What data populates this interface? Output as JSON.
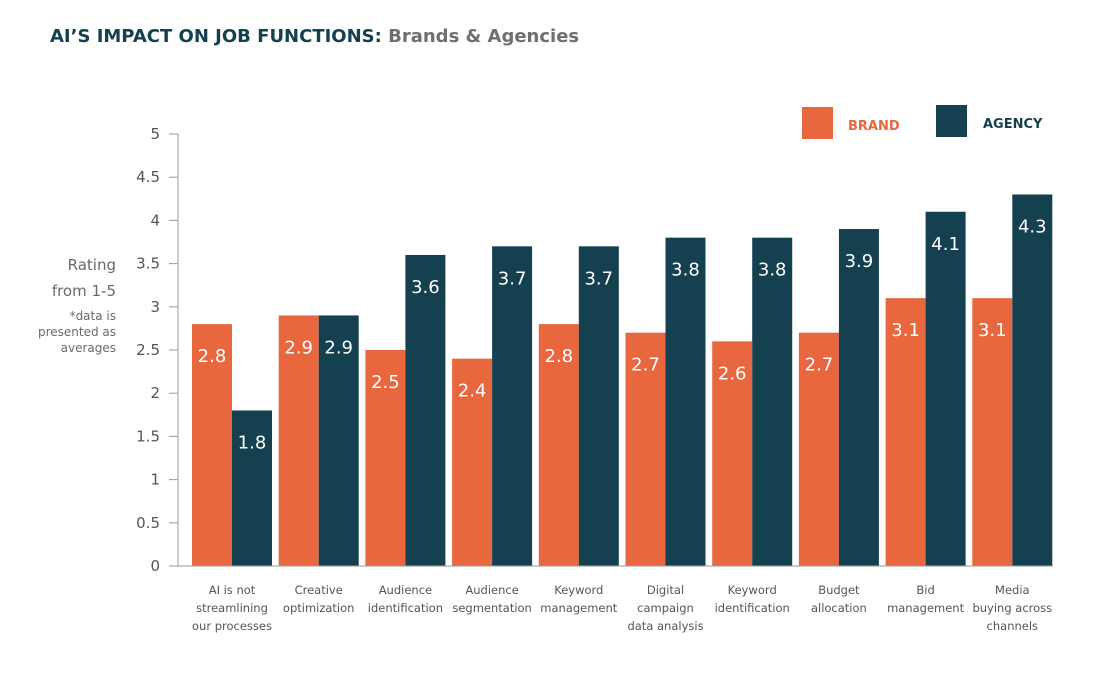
{
  "title": {
    "main": "AI’S IMPACT ON JOB FUNCTIONS:",
    "sub": "Brands & Agencies"
  },
  "y_axis_label": [
    "Rating",
    "from 1-5"
  ],
  "y_axis_note": [
    "*data is",
    "presented as",
    "averages"
  ],
  "colors": {
    "brand": "#e8673f",
    "agency": "#15404f",
    "axis": "#9a9a9a"
  },
  "chart_data": {
    "type": "bar",
    "title": "AI’S IMPACT ON JOB FUNCTIONS: Brands & Agencies",
    "ylabel": "Rating from 1-5",
    "ylim": [
      0,
      5
    ],
    "yticks": [
      "0",
      "0.5",
      "1",
      "1.5",
      "2",
      "2.5",
      "3",
      "3.5",
      "4",
      "4.5",
      "5"
    ],
    "grid": false,
    "legend_position": "top-right",
    "categories": [
      [
        "AI is not",
        "streamlining",
        "our processes"
      ],
      [
        "Creative",
        "optimization"
      ],
      [
        "Audience",
        "identification"
      ],
      [
        "Audience",
        "segmentation"
      ],
      [
        "Keyword",
        "management"
      ],
      [
        "Digital",
        "campaign",
        "data analysis"
      ],
      [
        "Keyword",
        "identification"
      ],
      [
        "Budget",
        "allocation"
      ],
      [
        "Bid",
        "management"
      ],
      [
        "Media",
        "buying across",
        "channels"
      ]
    ],
    "series": [
      {
        "name": "BRAND",
        "values": [
          2.8,
          2.9,
          2.5,
          2.4,
          2.8,
          2.7,
          2.6,
          2.7,
          3.1,
          3.1
        ],
        "labels": [
          "2.8",
          "2.9",
          "2.5",
          "2.4",
          "2.8",
          "2.7",
          "2.6",
          "2.7",
          "3.1",
          "3.1"
        ]
      },
      {
        "name": "AGENCY",
        "values": [
          1.8,
          2.9,
          3.6,
          3.7,
          3.7,
          3.8,
          3.8,
          3.9,
          4.1,
          4.3
        ],
        "labels": [
          "1.8",
          "2.9",
          "3.6",
          "3.7",
          "3.7",
          "3.8",
          "3.8",
          "3.9",
          "4.1",
          "4.3"
        ]
      }
    ]
  }
}
